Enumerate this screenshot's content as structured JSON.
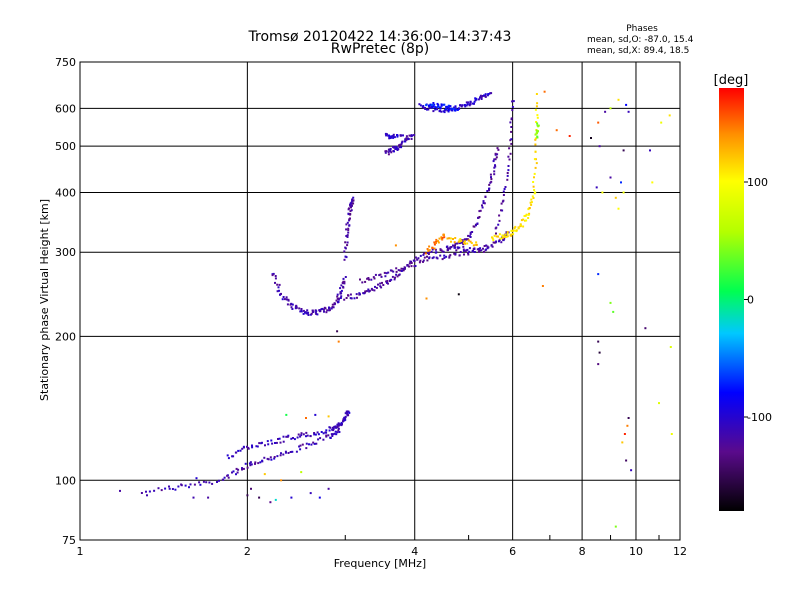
{
  "chart_data": {
    "type": "scatter",
    "title": "Tromsø 20120422 14:36:00–14:37:43",
    "subtitle": "RwPretec (8p)",
    "xlabel": "Frequency [MHz]",
    "ylabel": "Stationary phase Virtual Height [km]",
    "x_scale": "log",
    "y_scale": "log",
    "xlim": [
      1,
      12
    ],
    "ylim": [
      75,
      750
    ],
    "x_ticks": [
      1,
      2,
      4,
      6,
      8,
      10,
      12
    ],
    "y_ticks": [
      75,
      100,
      200,
      300,
      400,
      500,
      600,
      750
    ],
    "grid": true,
    "phases": {
      "title": "Phases",
      "line1": "mean, sd,O: -87.0, 15.4",
      "line2": "mean, sd,X: 89.4, 18.5"
    },
    "colorbar": {
      "label": "[deg]",
      "range": [
        -180,
        180
      ],
      "ticks": [
        100,
        0,
        -100
      ],
      "placement": "right"
    },
    "traces": [
      {
        "x": [
          1.3,
          1.55,
          1.8,
          1.95,
          2.1,
          2.3,
          2.55,
          2.8,
          2.93
        ],
        "y": [
          95,
          97,
          100,
          106,
          110,
          113,
          118,
          123,
          128
        ],
        "phase": -115
      },
      {
        "x": [
          1.85,
          2.0,
          2.2,
          2.4,
          2.6,
          2.8,
          2.92
        ],
        "y": [
          112,
          117,
          120,
          123,
          125,
          127,
          131
        ],
        "phase": -110
      },
      {
        "x": [
          2.9,
          2.95,
          3.0,
          3.05
        ],
        "y": [
          128,
          132,
          136,
          140
        ],
        "phase": -110
      },
      {
        "x": [
          2.22,
          2.3,
          2.4,
          2.5,
          2.6,
          2.7,
          2.8,
          2.9,
          2.95,
          3.0
        ],
        "y": [
          272,
          245,
          232,
          226,
          224,
          225,
          228,
          236,
          248,
          268
        ],
        "phase": -115
      },
      {
        "x": [
          3.0,
          3.02,
          3.05,
          3.08,
          3.1
        ],
        "y": [
          290,
          330,
          360,
          380,
          390
        ],
        "phase": -120
      },
      {
        "x": [
          3.0,
          3.2,
          3.4,
          3.6,
          3.8,
          4.0,
          4.3,
          4.6,
          5.0,
          5.4
        ],
        "y": [
          240,
          245,
          252,
          262,
          275,
          290,
          300,
          305,
          305,
          302
        ],
        "phase": -120
      },
      {
        "x": [
          3.2,
          3.5,
          3.8,
          4.2,
          4.6,
          5.0,
          5.4,
          5.7,
          5.9
        ],
        "y": [
          260,
          268,
          278,
          288,
          295,
          300,
          308,
          318,
          330
        ],
        "phase": -120
      },
      {
        "x": [
          4.6,
          4.8,
          5.0,
          5.2,
          5.4,
          5.55,
          5.65
        ],
        "y": [
          305,
          312,
          322,
          350,
          400,
          450,
          500
        ],
        "phase": -120
      },
      {
        "x": [
          5.6,
          5.8,
          5.95,
          6.0
        ],
        "y": [
          330,
          400,
          500,
          640
        ],
        "phase": -120
      },
      {
        "x": [
          3.55,
          3.65,
          3.75,
          3.85,
          4.0
        ],
        "y": [
          485,
          490,
          500,
          515,
          530
        ],
        "phase": -115
      },
      {
        "x": [
          3.55,
          3.65,
          3.8
        ],
        "y": [
          525,
          520,
          530
        ],
        "phase": -105
      },
      {
        "x": [
          4.1,
          4.3,
          4.5,
          4.7,
          4.9,
          5.1,
          5.3,
          5.5
        ],
        "y": [
          605,
          600,
          595,
          600,
          610,
          620,
          635,
          645
        ],
        "phase": -105
      },
      {
        "x": [
          4.2,
          4.4,
          4.6,
          4.8
        ],
        "y": [
          610,
          608,
          602,
          598
        ],
        "phase": -75
      },
      {
        "x": [
          5.5,
          5.8,
          6.0,
          6.2,
          6.4,
          6.55,
          6.62,
          6.65
        ],
        "y": [
          320,
          325,
          330,
          340,
          360,
          400,
          500,
          650
        ],
        "phase": 110
      },
      {
        "x": [
          4.2,
          4.4,
          4.55
        ],
        "y": [
          300,
          315,
          330
        ],
        "phase": 145
      },
      {
        "x": [
          4.6,
          4.9,
          5.2
        ],
        "y": [
          320,
          315,
          312
        ],
        "phase": 120
      },
      {
        "x": [
          6.62,
          6.68
        ],
        "y": [
          520,
          560
        ],
        "phase": 40
      }
    ],
    "scatter": [
      {
        "x": 1.18,
        "y": 95,
        "phase": -120
      },
      {
        "x": 1.32,
        "y": 93,
        "phase": -115
      },
      {
        "x": 1.45,
        "y": 96,
        "phase": -110
      },
      {
        "x": 1.52,
        "y": 98,
        "phase": -120
      },
      {
        "x": 1.6,
        "y": 92,
        "phase": -115
      },
      {
        "x": 1.62,
        "y": 101,
        "phase": -100
      },
      {
        "x": 1.7,
        "y": 92,
        "phase": -120
      },
      {
        "x": 2.0,
        "y": 93,
        "phase": -150
      },
      {
        "x": 2.03,
        "y": 96,
        "phase": -140
      },
      {
        "x": 2.1,
        "y": 92,
        "phase": -150
      },
      {
        "x": 2.2,
        "y": 90,
        "phase": -130
      },
      {
        "x": 2.25,
        "y": 91,
        "phase": -20
      },
      {
        "x": 2.4,
        "y": 92,
        "phase": -100
      },
      {
        "x": 2.6,
        "y": 94,
        "phase": -110
      },
      {
        "x": 2.7,
        "y": 92,
        "phase": -90
      },
      {
        "x": 2.8,
        "y": 96,
        "phase": -120
      },
      {
        "x": 2.15,
        "y": 103,
        "phase": 120
      },
      {
        "x": 2.3,
        "y": 100,
        "phase": 140
      },
      {
        "x": 2.5,
        "y": 104,
        "phase": 60
      },
      {
        "x": 2.35,
        "y": 137,
        "phase": 10
      },
      {
        "x": 2.55,
        "y": 135,
        "phase": 150
      },
      {
        "x": 2.65,
        "y": 137,
        "phase": -100
      },
      {
        "x": 2.8,
        "y": 136,
        "phase": 120
      },
      {
        "x": 2.9,
        "y": 205,
        "phase": -150
      },
      {
        "x": 2.92,
        "y": 195,
        "phase": 145
      },
      {
        "x": 3.7,
        "y": 310,
        "phase": 140
      },
      {
        "x": 4.2,
        "y": 240,
        "phase": 140
      },
      {
        "x": 4.8,
        "y": 245,
        "phase": -175
      },
      {
        "x": 6.8,
        "y": 255,
        "phase": 145
      },
      {
        "x": 7.6,
        "y": 525,
        "phase": 170
      },
      {
        "x": 7.2,
        "y": 540,
        "phase": 150
      },
      {
        "x": 6.85,
        "y": 650,
        "phase": 150
      },
      {
        "x": 8.3,
        "y": 520,
        "phase": -170
      },
      {
        "x": 8.6,
        "y": 500,
        "phase": -120
      },
      {
        "x": 8.5,
        "y": 410,
        "phase": -110
      },
      {
        "x": 8.7,
        "y": 400,
        "phase": 95
      },
      {
        "x": 8.55,
        "y": 560,
        "phase": 155
      },
      {
        "x": 8.8,
        "y": 590,
        "phase": -120
      },
      {
        "x": 9.0,
        "y": 600,
        "phase": 60
      },
      {
        "x": 8.55,
        "y": 270,
        "phase": -70
      },
      {
        "x": 8.55,
        "y": 195,
        "phase": -150
      },
      {
        "x": 8.6,
        "y": 185,
        "phase": -160
      },
      {
        "x": 8.55,
        "y": 175,
        "phase": -135
      },
      {
        "x": 9.0,
        "y": 235,
        "phase": 40
      },
      {
        "x": 9.1,
        "y": 225,
        "phase": 30
      },
      {
        "x": 9.0,
        "y": 430,
        "phase": -120
      },
      {
        "x": 9.2,
        "y": 390,
        "phase": 120
      },
      {
        "x": 9.3,
        "y": 370,
        "phase": 100
      },
      {
        "x": 9.4,
        "y": 420,
        "phase": -70
      },
      {
        "x": 9.5,
        "y": 400,
        "phase": 90
      },
      {
        "x": 9.6,
        "y": 610,
        "phase": -80
      },
      {
        "x": 9.7,
        "y": 590,
        "phase": -110
      },
      {
        "x": 9.5,
        "y": 490,
        "phase": -150
      },
      {
        "x": 9.3,
        "y": 625,
        "phase": 110
      },
      {
        "x": 9.55,
        "y": 125,
        "phase": 170
      },
      {
        "x": 9.7,
        "y": 135,
        "phase": -150
      },
      {
        "x": 9.65,
        "y": 130,
        "phase": 145
      },
      {
        "x": 9.6,
        "y": 110,
        "phase": -145
      },
      {
        "x": 9.45,
        "y": 120,
        "phase": 120
      },
      {
        "x": 9.8,
        "y": 105,
        "phase": -110
      },
      {
        "x": 9.2,
        "y": 80,
        "phase": 40
      },
      {
        "x": 10.4,
        "y": 208,
        "phase": -140
      },
      {
        "x": 10.6,
        "y": 490,
        "phase": -110
      },
      {
        "x": 10.7,
        "y": 420,
        "phase": 100
      },
      {
        "x": 11.0,
        "y": 145,
        "phase": 80
      },
      {
        "x": 11.1,
        "y": 560,
        "phase": 90
      },
      {
        "x": 11.5,
        "y": 580,
        "phase": 110
      },
      {
        "x": 11.6,
        "y": 125,
        "phase": 90
      },
      {
        "x": 11.55,
        "y": 190,
        "phase": 80
      }
    ]
  }
}
